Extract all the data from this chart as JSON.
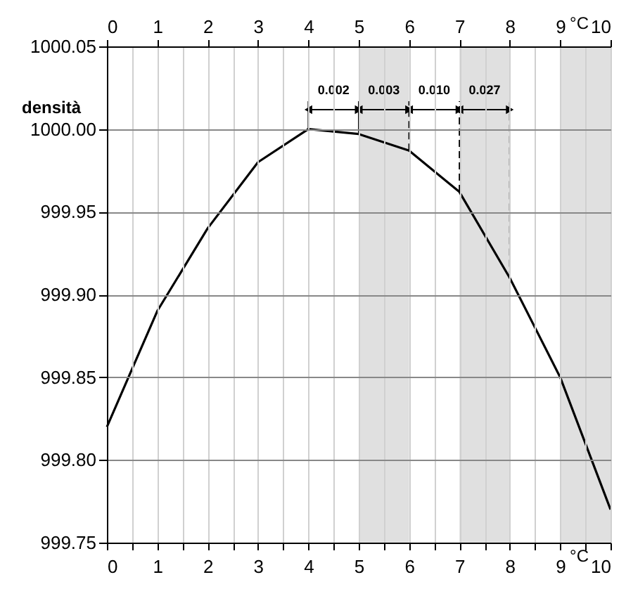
{
  "chart_data": {
    "type": "line",
    "ylabel": "densità",
    "xlabel": "°C",
    "x2label": "°C",
    "x": [
      0,
      1,
      2,
      3,
      4,
      5,
      6,
      7,
      8,
      9,
      10
    ],
    "series": [
      {
        "color": "#000000",
        "values": [
          999.82,
          999.89,
          999.94,
          999.98,
          1000.0,
          999.997,
          999.987,
          999.962,
          999.91,
          999.85,
          999.77
        ]
      }
    ],
    "xlim": [
      0,
      10
    ],
    "x2lim": [
      0,
      10
    ],
    "xticks": [
      0,
      {
        "value": 0.5,
        "label": null
      },
      1,
      {
        "value": 1.5,
        "label": null
      },
      2,
      {
        "value": 2.5,
        "label": null
      },
      3,
      {
        "value": 3.5,
        "label": null
      },
      4,
      {
        "value": 4.5,
        "label": null
      },
      5,
      {
        "value": 5.5,
        "label": null
      },
      6,
      {
        "value": 6.5,
        "label": null
      },
      7,
      {
        "value": 7.5,
        "label": null
      },
      8,
      {
        "value": 8.5,
        "label": null
      },
      9,
      {
        "value": 9.5,
        "label": null
      },
      10
    ],
    "x2ticks": [
      0,
      1,
      2,
      3,
      4,
      5,
      6,
      7,
      8,
      9,
      10
    ],
    "ylim": [
      999.75,
      1000.05
    ],
    "yticks": [
      {
        "value": 999.75,
        "label": "999.75"
      },
      {
        "value": 999.8,
        "label": "999.80"
      },
      {
        "value": 999.85,
        "label": "999.85"
      },
      {
        "value": 999.9,
        "label": "999.90"
      },
      {
        "value": 999.95,
        "label": "999.95"
      },
      {
        "value": 1000.0,
        "label": "1000.00"
      },
      {
        "value": 1000.05,
        "label": "1000.05"
      }
    ],
    "grid": true,
    "marker": "none",
    "line_style": "solid",
    "bands": [
      {
        "axis": "x",
        "from": 5,
        "to": 6,
        "color": "#e0e0e0"
      },
      {
        "axis": "x",
        "from": 7,
        "to": 8,
        "color": "#e0e0e0"
      },
      {
        "axis": "x",
        "from": 9,
        "to": 10,
        "color": "#e0e0e0"
      }
    ],
    "annotations": [
      {
        "text": "0.002",
        "x": 5,
        "y": 999.997
      },
      {
        "text": "0.003",
        "x": 6,
        "y": 999.987
      },
      {
        "text": "0.010",
        "x": 7,
        "y": 999.962
      },
      {
        "text": "0.027",
        "x": 8,
        "y": 999.91
      }
    ]
  }
}
